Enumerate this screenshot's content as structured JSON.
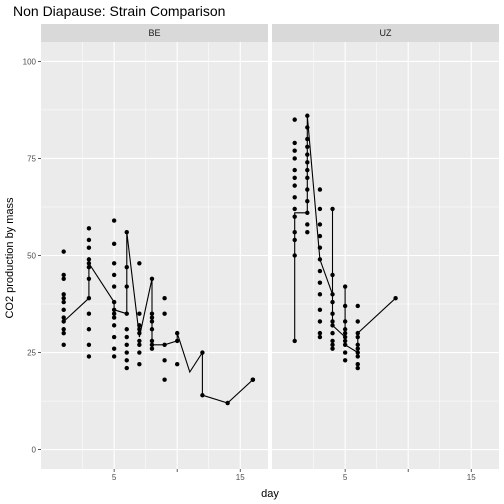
{
  "chart_data": {
    "type": "scatter",
    "title": "Non Diapause: Strain Comparison",
    "xlabel": "day",
    "ylabel": "CO2 production by mass",
    "xlim": [
      -0.8,
      17.2
    ],
    "ylim": [
      -5,
      105
    ],
    "x_ticks": [
      5,
      10,
      15
    ],
    "x_tick_labels": [
      "5",
      "",
      "15"
    ],
    "y_ticks": [
      0,
      25,
      50,
      75,
      100
    ],
    "y_tick_labels": [
      "0",
      "25",
      "50",
      "75",
      "100"
    ],
    "grid": true,
    "legend": "none",
    "panels": [
      {
        "name": "BE",
        "points": [
          [
            1,
            51
          ],
          [
            1,
            45
          ],
          [
            1,
            44
          ],
          [
            1,
            40
          ],
          [
            1,
            39
          ],
          [
            1,
            38
          ],
          [
            1,
            36
          ],
          [
            1,
            34
          ],
          [
            1,
            33
          ],
          [
            1,
            31
          ],
          [
            1,
            30
          ],
          [
            1,
            27
          ],
          [
            3,
            57
          ],
          [
            3,
            54
          ],
          [
            3,
            52
          ],
          [
            3,
            49
          ],
          [
            3,
            48
          ],
          [
            3,
            47
          ],
          [
            3,
            44
          ],
          [
            3,
            39
          ],
          [
            3,
            35
          ],
          [
            3,
            31
          ],
          [
            3,
            27
          ],
          [
            3,
            24
          ],
          [
            5,
            59
          ],
          [
            5,
            53
          ],
          [
            5,
            48
          ],
          [
            5,
            45
          ],
          [
            5,
            42
          ],
          [
            5,
            38
          ],
          [
            5,
            36
          ],
          [
            5,
            35
          ],
          [
            5,
            34
          ],
          [
            5,
            32
          ],
          [
            5,
            29
          ],
          [
            5,
            26
          ],
          [
            5,
            24
          ],
          [
            6,
            56
          ],
          [
            6,
            47
          ],
          [
            6,
            42
          ],
          [
            6,
            35
          ],
          [
            6,
            31
          ],
          [
            6,
            29
          ],
          [
            6,
            27
          ],
          [
            6,
            25
          ],
          [
            6,
            23
          ],
          [
            6,
            21
          ],
          [
            7,
            48
          ],
          [
            7,
            35
          ],
          [
            7,
            32
          ],
          [
            7,
            31
          ],
          [
            7,
            30
          ],
          [
            7,
            28
          ],
          [
            7,
            27
          ],
          [
            7,
            25
          ],
          [
            7,
            22
          ],
          [
            8,
            44
          ],
          [
            8,
            35
          ],
          [
            8,
            34
          ],
          [
            8,
            33
          ],
          [
            8,
            31
          ],
          [
            8,
            28
          ],
          [
            8,
            27
          ],
          [
            8,
            26
          ],
          [
            9,
            39
          ],
          [
            9,
            35
          ],
          [
            9,
            27
          ],
          [
            9,
            23
          ],
          [
            9,
            18
          ],
          [
            10,
            30
          ],
          [
            10,
            28
          ],
          [
            10,
            22
          ],
          [
            12,
            25
          ],
          [
            12,
            14
          ],
          [
            14,
            12
          ],
          [
            16,
            18
          ],
          [
            16,
            18
          ]
        ],
        "line": [
          [
            1,
            33
          ],
          [
            3,
            39
          ],
          [
            3,
            48
          ],
          [
            5,
            38
          ],
          [
            5,
            36
          ],
          [
            6,
            35
          ],
          [
            6,
            56
          ],
          [
            7,
            29
          ],
          [
            7,
            29
          ],
          [
            8,
            44
          ],
          [
            8,
            27
          ],
          [
            9,
            27
          ],
          [
            10,
            28
          ],
          [
            10,
            30
          ],
          [
            11,
            20
          ],
          [
            12,
            25
          ],
          [
            12,
            14
          ],
          [
            14,
            12
          ],
          [
            16,
            18
          ]
        ]
      },
      {
        "name": "UZ",
        "points": [
          [
            1,
            85
          ],
          [
            1,
            79
          ],
          [
            1,
            77
          ],
          [
            1,
            75
          ],
          [
            1,
            72
          ],
          [
            1,
            70
          ],
          [
            1,
            68
          ],
          [
            1,
            65
          ],
          [
            1,
            62
          ],
          [
            1,
            60
          ],
          [
            1,
            56
          ],
          [
            1,
            54
          ],
          [
            1,
            50
          ],
          [
            1,
            28
          ],
          [
            2,
            86
          ],
          [
            2,
            83
          ],
          [
            2,
            80
          ],
          [
            2,
            78
          ],
          [
            2,
            76
          ],
          [
            2,
            74
          ],
          [
            2,
            72
          ],
          [
            2,
            70
          ],
          [
            2,
            67
          ],
          [
            2,
            64
          ],
          [
            2,
            61
          ],
          [
            2,
            58
          ],
          [
            2,
            56
          ],
          [
            3,
            67
          ],
          [
            3,
            62
          ],
          [
            3,
            58
          ],
          [
            3,
            55
          ],
          [
            3,
            52
          ],
          [
            3,
            49
          ],
          [
            3,
            46
          ],
          [
            3,
            43
          ],
          [
            3,
            40
          ],
          [
            3,
            36
          ],
          [
            3,
            33
          ],
          [
            3,
            30
          ],
          [
            3,
            29
          ],
          [
            4,
            62
          ],
          [
            4,
            45
          ],
          [
            4,
            40
          ],
          [
            4,
            38
          ],
          [
            4,
            35
          ],
          [
            4,
            33
          ],
          [
            4,
            32
          ],
          [
            4,
            30
          ],
          [
            4,
            28
          ],
          [
            4,
            27
          ],
          [
            4,
            26
          ],
          [
            5,
            42
          ],
          [
            5,
            37
          ],
          [
            5,
            33
          ],
          [
            5,
            31
          ],
          [
            5,
            30
          ],
          [
            5,
            29
          ],
          [
            5,
            28
          ],
          [
            5,
            27
          ],
          [
            5,
            25
          ],
          [
            5,
            23
          ],
          [
            6,
            37
          ],
          [
            6,
            33
          ],
          [
            6,
            30
          ],
          [
            6,
            29
          ],
          [
            6,
            27
          ],
          [
            6,
            26
          ],
          [
            6,
            25
          ],
          [
            6,
            24
          ],
          [
            6,
            22
          ],
          [
            6,
            21
          ],
          [
            9,
            39
          ]
        ],
        "line": [
          [
            1,
            28
          ],
          [
            1,
            61
          ],
          [
            2,
            61
          ],
          [
            2,
            86
          ],
          [
            3,
            49
          ],
          [
            3,
            49
          ],
          [
            4,
            40
          ],
          [
            4,
            62
          ],
          [
            4,
            32
          ],
          [
            5,
            29
          ],
          [
            5,
            42
          ],
          [
            5,
            27
          ],
          [
            6,
            25
          ],
          [
            6,
            30
          ],
          [
            9,
            39
          ]
        ]
      }
    ]
  }
}
